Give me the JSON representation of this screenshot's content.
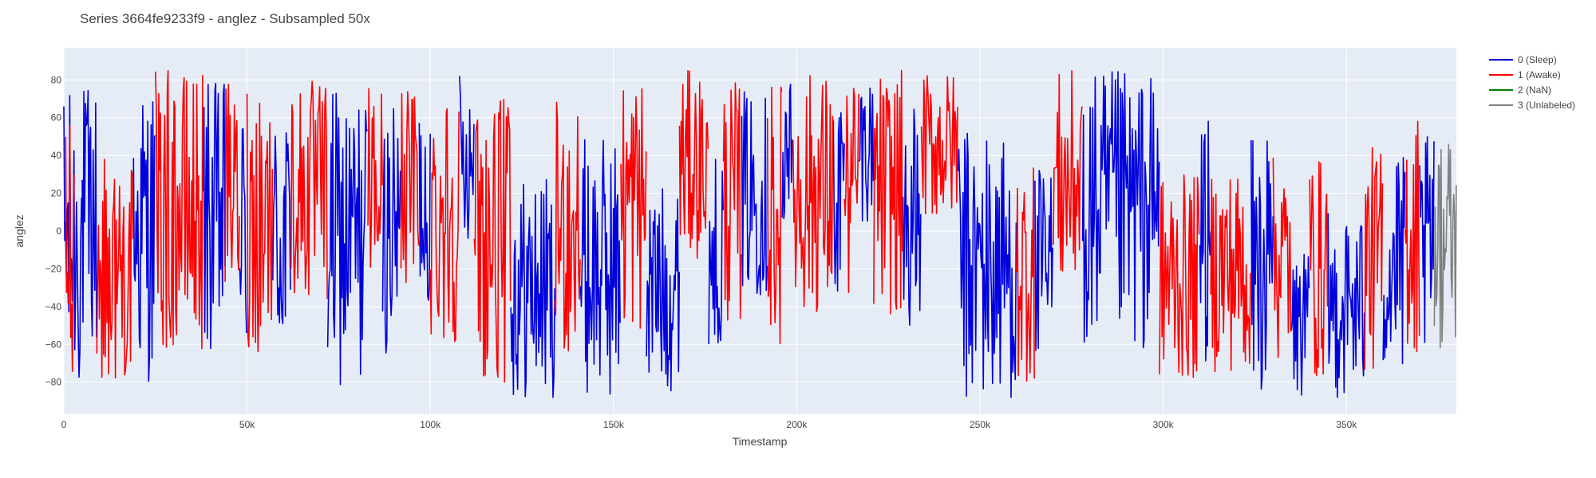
{
  "chart_data": {
    "type": "line",
    "title": "Series 3664fe9233f9 - anglez - Subsampled 50x",
    "xlabel": "Timestamp",
    "ylabel": "anglez",
    "xlim": [
      0,
      380000
    ],
    "ylim": [
      -97,
      97
    ],
    "grid": true,
    "legend_position": "top-right",
    "x_ticks": [
      {
        "value": 0,
        "label": "0"
      },
      {
        "value": 50000,
        "label": "50k"
      },
      {
        "value": 100000,
        "label": "100k"
      },
      {
        "value": 150000,
        "label": "150k"
      },
      {
        "value": 200000,
        "label": "200k"
      },
      {
        "value": 250000,
        "label": "250k"
      },
      {
        "value": 300000,
        "label": "300k"
      },
      {
        "value": 350000,
        "label": "350k"
      }
    ],
    "y_ticks": [
      {
        "value": 80,
        "label": "80"
      },
      {
        "value": 60,
        "label": "60"
      },
      {
        "value": 40,
        "label": "40"
      },
      {
        "value": 20,
        "label": "20"
      },
      {
        "value": 0,
        "label": "0"
      },
      {
        "value": -20,
        "label": "−20"
      },
      {
        "value": -40,
        "label": "−40"
      },
      {
        "value": -60,
        "label": "−60"
      },
      {
        "value": -80,
        "label": "−80"
      }
    ],
    "series": [
      {
        "name": "0 (Sleep)",
        "color": "#0000dd",
        "segments": [
          {
            "x_start": 0,
            "x_end": 5000,
            "center": -5,
            "amplitude": 80
          },
          {
            "x_start": 5000,
            "x_end": 9000,
            "center": 5,
            "amplitude": 75
          },
          {
            "x_start": 19000,
            "x_end": 25000,
            "center": 0,
            "amplitude": 80
          },
          {
            "x_start": 38000,
            "x_end": 44000,
            "center": 5,
            "amplitude": 75
          },
          {
            "x_start": 48000,
            "x_end": 50000,
            "center": 0,
            "amplitude": 70
          },
          {
            "x_start": 57000,
            "x_end": 62000,
            "center": -5,
            "amplitude": 70
          },
          {
            "x_start": 72000,
            "x_end": 83000,
            "center": -5,
            "amplitude": 80
          },
          {
            "x_start": 87000,
            "x_end": 92000,
            "center": 0,
            "amplitude": 65
          },
          {
            "x_start": 97000,
            "x_end": 100000,
            "center": 20,
            "amplitude": 60
          },
          {
            "x_start": 108000,
            "x_end": 112000,
            "center": 40,
            "amplitude": 45
          },
          {
            "x_start": 122000,
            "x_end": 134000,
            "center": -30,
            "amplitude": 60
          },
          {
            "x_start": 141000,
            "x_end": 152000,
            "center": -20,
            "amplitude": 70
          },
          {
            "x_start": 159000,
            "x_end": 168000,
            "center": -30,
            "amplitude": 55
          },
          {
            "x_start": 176000,
            "x_end": 180000,
            "center": -10,
            "amplitude": 50
          },
          {
            "x_start": 185000,
            "x_end": 192000,
            "center": 20,
            "amplitude": 55
          },
          {
            "x_start": 196000,
            "x_end": 199000,
            "center": 40,
            "amplitude": 45
          },
          {
            "x_start": 210000,
            "x_end": 213000,
            "center": 20,
            "amplitude": 60
          },
          {
            "x_start": 217000,
            "x_end": 221000,
            "center": 45,
            "amplitude": 40
          },
          {
            "x_start": 229000,
            "x_end": 234000,
            "center": 5,
            "amplitude": 60
          },
          {
            "x_start": 244000,
            "x_end": 260000,
            "center": -20,
            "amplitude": 75
          },
          {
            "x_start": 265000,
            "x_end": 270000,
            "center": -25,
            "amplitude": 60
          },
          {
            "x_start": 278000,
            "x_end": 299000,
            "center": 10,
            "amplitude": 75
          },
          {
            "x_start": 310000,
            "x_end": 313000,
            "center": 0,
            "amplitude": 70
          },
          {
            "x_start": 324000,
            "x_end": 330000,
            "center": -20,
            "amplitude": 70
          },
          {
            "x_start": 335000,
            "x_end": 340000,
            "center": -50,
            "amplitude": 40
          },
          {
            "x_start": 345000,
            "x_end": 355000,
            "center": -40,
            "amplitude": 50
          },
          {
            "x_start": 360000,
            "x_end": 366000,
            "center": -20,
            "amplitude": 60
          },
          {
            "x_start": 370000,
            "x_end": 374000,
            "center": -10,
            "amplitude": 60
          }
        ]
      },
      {
        "name": "1 (Awake)",
        "color": "#ff0000",
        "segments": [
          {
            "x_start": 500,
            "x_end": 3000,
            "center": 0,
            "amplitude": 75
          },
          {
            "x_start": 9000,
            "x_end": 19000,
            "center": -20,
            "amplitude": 60
          },
          {
            "x_start": 25000,
            "x_end": 38000,
            "center": 10,
            "amplitude": 75
          },
          {
            "x_start": 44000,
            "x_end": 48000,
            "center": 20,
            "amplitude": 60
          },
          {
            "x_start": 50000,
            "x_end": 57000,
            "center": 10,
            "amplitude": 75
          },
          {
            "x_start": 62000,
            "x_end": 72000,
            "center": 20,
            "amplitude": 60
          },
          {
            "x_start": 83000,
            "x_end": 87000,
            "center": 20,
            "amplitude": 60
          },
          {
            "x_start": 92000,
            "x_end": 97000,
            "center": 25,
            "amplitude": 55
          },
          {
            "x_start": 100000,
            "x_end": 108000,
            "center": 10,
            "amplitude": 70
          },
          {
            "x_start": 112000,
            "x_end": 122000,
            "center": -5,
            "amplitude": 75
          },
          {
            "x_start": 134000,
            "x_end": 141000,
            "center": 0,
            "amplitude": 70
          },
          {
            "x_start": 152000,
            "x_end": 159000,
            "center": 15,
            "amplitude": 70
          },
          {
            "x_start": 168000,
            "x_end": 176000,
            "center": 35,
            "amplitude": 50
          },
          {
            "x_start": 180000,
            "x_end": 185000,
            "center": 15,
            "amplitude": 65
          },
          {
            "x_start": 192000,
            "x_end": 196000,
            "center": 10,
            "amplitude": 70
          },
          {
            "x_start": 199000,
            "x_end": 210000,
            "center": 20,
            "amplitude": 65
          },
          {
            "x_start": 213000,
            "x_end": 217000,
            "center": 20,
            "amplitude": 60
          },
          {
            "x_start": 221000,
            "x_end": 229000,
            "center": 20,
            "amplitude": 65
          },
          {
            "x_start": 234000,
            "x_end": 244000,
            "center": 45,
            "amplitude": 40
          },
          {
            "x_start": 260000,
            "x_end": 265000,
            "center": -20,
            "amplitude": 60
          },
          {
            "x_start": 270000,
            "x_end": 278000,
            "center": 25,
            "amplitude": 60
          },
          {
            "x_start": 299000,
            "x_end": 310000,
            "center": -25,
            "amplitude": 55
          },
          {
            "x_start": 313000,
            "x_end": 324000,
            "center": -20,
            "amplitude": 55
          },
          {
            "x_start": 330000,
            "x_end": 335000,
            "center": -15,
            "amplitude": 55
          },
          {
            "x_start": 340000,
            "x_end": 345000,
            "center": -20,
            "amplitude": 60
          },
          {
            "x_start": 355000,
            "x_end": 360000,
            "center": -15,
            "amplitude": 60
          },
          {
            "x_start": 366000,
            "x_end": 370000,
            "center": 0,
            "amplitude": 65
          }
        ]
      },
      {
        "name": "2 (NaN)",
        "color": "#008000",
        "segments": []
      },
      {
        "name": "3 (Unlabeled)",
        "color": "#808080",
        "segments": [
          {
            "x_start": 374000,
            "x_end": 380000,
            "center": -5,
            "amplitude": 60
          }
        ]
      }
    ]
  }
}
